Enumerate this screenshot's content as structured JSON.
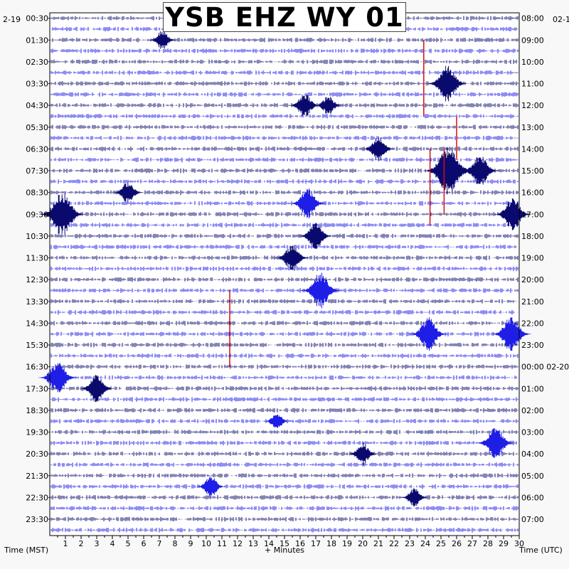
{
  "title": "YSB EHZ WY 01",
  "corner_left": "2-19",
  "corner_right": "02-1",
  "colors": {
    "dark": "#0a0a6e",
    "blue": "#1e1ee6",
    "pick": "#d01010",
    "background": "#ffffff"
  },
  "chart_data": {
    "type": "heliplot",
    "title": "YSB EHZ WY 01",
    "xlabel": "+ Minutes",
    "ylabel_left": "Time (MST)",
    "ylabel_right": "Time (UTC)",
    "x_ticks": [
      "1",
      "2",
      "3",
      "4",
      "5",
      "6",
      "7",
      "8",
      "9",
      "10",
      "11",
      "12",
      "13",
      "14",
      "15",
      "16",
      "17",
      "18",
      "19",
      "20",
      "21",
      "22",
      "23",
      "24",
      "25",
      "26",
      "27",
      "28",
      "29",
      "30"
    ],
    "xlim": [
      0,
      30
    ],
    "left_labels": [
      "00:30",
      "01:30",
      "02:30",
      "03:30",
      "04:30",
      "05:30",
      "06:30",
      "07:30",
      "08:30",
      "09:30",
      "10:30",
      "11:30",
      "12:30",
      "13:30",
      "14:30",
      "15:30",
      "16:30",
      "17:30",
      "18:30",
      "19:30",
      "20:30",
      "21:30",
      "22:30",
      "23:30"
    ],
    "right_labels": [
      "08:00",
      "09:00",
      "10:00",
      "11:00",
      "12:00",
      "13:00",
      "14:00",
      "15:00",
      "16:00",
      "17:00",
      "18:00",
      "19:00",
      "20:00",
      "21:00",
      "22:00",
      "23:00",
      "00:00 02-20",
      "01:00",
      "02:00",
      "03:00",
      "04:00",
      "05:00",
      "06:00",
      "07:00"
    ],
    "traces_per_hour": 2,
    "series": [
      {
        "name": "trace-color-a",
        "color": "#0a0a6e"
      },
      {
        "name": "trace-color-b",
        "color": "#1e1ee6"
      }
    ],
    "events": [
      {
        "time_min": 7.2,
        "trace": 2,
        "amp": 0.7
      },
      {
        "time_min": 25.4,
        "trace": 6,
        "amp": 1.3
      },
      {
        "time_min": 16.3,
        "trace": 8,
        "amp": 0.9
      },
      {
        "time_min": 17.8,
        "trace": 8,
        "amp": 0.7
      },
      {
        "time_min": 21.0,
        "trace": 12,
        "amp": 0.9
      },
      {
        "time_min": 25.5,
        "trace": 14,
        "amp": 1.8
      },
      {
        "time_min": 27.5,
        "trace": 14,
        "amp": 1.2
      },
      {
        "time_min": 5.0,
        "trace": 16,
        "amp": 0.8
      },
      {
        "time_min": 16.5,
        "trace": 17,
        "amp": 1.1
      },
      {
        "time_min": 0.8,
        "trace": 18,
        "amp": 1.6
      },
      {
        "time_min": 29.6,
        "trace": 18,
        "amp": 1.2
      },
      {
        "time_min": 17.0,
        "trace": 20,
        "amp": 1.0
      },
      {
        "time_min": 15.5,
        "trace": 22,
        "amp": 1.0
      },
      {
        "time_min": 17.3,
        "trace": 25,
        "amp": 1.3
      },
      {
        "time_min": 24.2,
        "trace": 29,
        "amp": 1.2
      },
      {
        "time_min": 29.5,
        "trace": 29,
        "amp": 1.3
      },
      {
        "time_min": 0.5,
        "trace": 33,
        "amp": 1.2
      },
      {
        "time_min": 3.0,
        "trace": 34,
        "amp": 1.0
      },
      {
        "time_min": 14.5,
        "trace": 37,
        "amp": 0.6
      },
      {
        "time_min": 28.5,
        "trace": 39,
        "amp": 1.2
      },
      {
        "time_min": 20.0,
        "trace": 40,
        "amp": 0.8
      },
      {
        "time_min": 10.3,
        "trace": 43,
        "amp": 0.8
      },
      {
        "time_min": 23.3,
        "trace": 44,
        "amp": 0.7
      }
    ],
    "picks": [
      {
        "time_min": 23.9,
        "trace_start": 2,
        "trace_end": 9
      },
      {
        "time_min": 26.0,
        "trace_start": 9,
        "trace_end": 13
      },
      {
        "time_min": 24.3,
        "trace_start": 12,
        "trace_end": 19
      },
      {
        "time_min": 25.2,
        "trace_start": 12,
        "trace_end": 18
      },
      {
        "time_min": 11.5,
        "trace_start": 25,
        "trace_end": 32
      }
    ]
  }
}
